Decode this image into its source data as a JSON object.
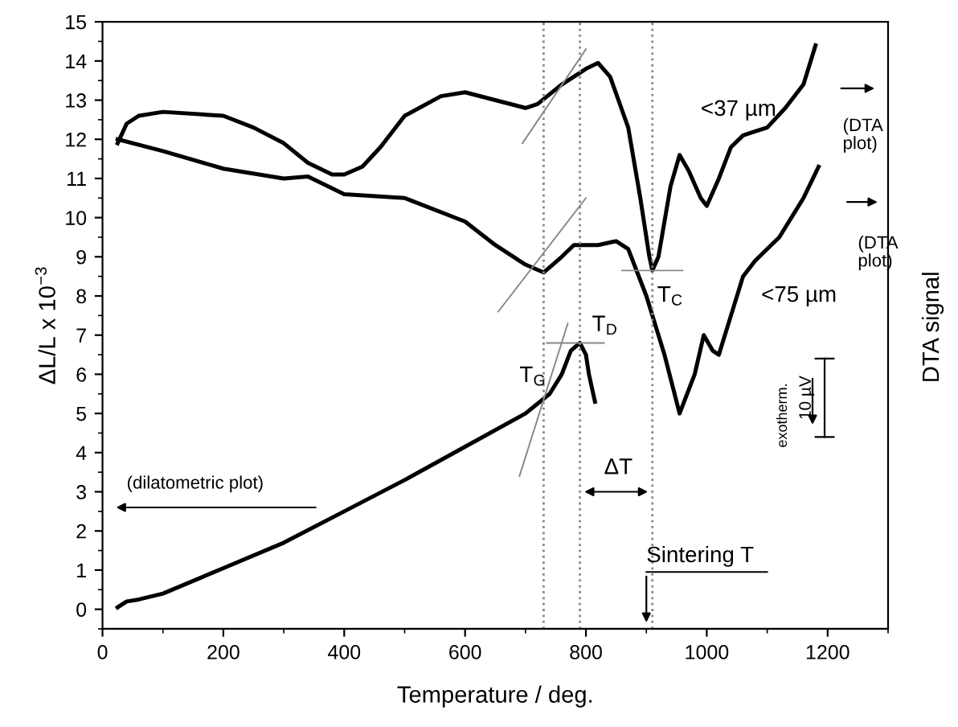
{
  "chart_data": {
    "type": "line",
    "xlabel": "Temperature / deg.",
    "ylabel": "ΔL/L x 10$^{−3}$",
    "y2label": "DTA signal",
    "xlim": [
      0,
      1300
    ],
    "ylim": [
      -0.5,
      15
    ],
    "xticks": [
      0,
      200,
      400,
      600,
      800,
      1000,
      1200
    ],
    "yticks": [
      0,
      1,
      2,
      3,
      4,
      5,
      6,
      7,
      8,
      9,
      10,
      11,
      12,
      13,
      14,
      15
    ],
    "grid": false,
    "marker": "none",
    "line_style": "solid",
    "series": [
      {
        "color": "#000000",
        "x": [
          25,
          40,
          60,
          100,
          200,
          300,
          400,
          500,
          600,
          700,
          740,
          760,
          775,
          790,
          800,
          805,
          815
        ],
        "values": [
          0.05,
          0.2,
          0.25,
          0.4,
          1.05,
          1.7,
          2.5,
          3.3,
          4.15,
          5.0,
          5.5,
          6.0,
          6.6,
          6.8,
          6.5,
          6.0,
          5.3
        ]
      },
      {
        "color": "#000000",
        "x": [
          25,
          40,
          60,
          100,
          200,
          250,
          300,
          340,
          380,
          400,
          430,
          460,
          500,
          560,
          600,
          650,
          700,
          720,
          760,
          800,
          820,
          840,
          870,
          890,
          905,
          910,
          920,
          940,
          955,
          970,
          990,
          1000,
          1020,
          1040,
          1060,
          1080,
          1100,
          1130,
          1160,
          1180
        ],
        "values": [
          11.9,
          12.4,
          12.6,
          12.7,
          12.6,
          12.3,
          11.9,
          11.4,
          11.1,
          11.1,
          11.3,
          11.8,
          12.6,
          13.1,
          13.2,
          13.0,
          12.8,
          12.9,
          13.4,
          13.8,
          13.95,
          13.6,
          12.3,
          10.5,
          9.0,
          8.65,
          9.0,
          10.8,
          11.6,
          11.2,
          10.5,
          10.3,
          11.0,
          11.8,
          12.1,
          12.2,
          12.3,
          12.8,
          13.4,
          14.4
        ]
      },
      {
        "color": "#000000",
        "x": [
          25,
          100,
          200,
          300,
          340,
          400,
          500,
          600,
          650,
          700,
          730,
          760,
          780,
          820,
          850,
          870,
          900,
          930,
          955,
          980,
          995,
          1010,
          1020,
          1040,
          1060,
          1080,
          1120,
          1160,
          1185
        ],
        "values": [
          12.0,
          11.7,
          11.25,
          11.0,
          11.05,
          10.6,
          10.5,
          9.9,
          9.3,
          8.8,
          8.6,
          9.0,
          9.3,
          9.3,
          9.4,
          9.2,
          8.0,
          6.5,
          5.0,
          6.0,
          7.0,
          6.6,
          6.5,
          7.5,
          8.5,
          8.9,
          9.5,
          10.5,
          11.3
        ]
      },
      {
        "color": "#888888",
        "x": [
          695,
          800
        ],
        "values": [
          11.9,
          14.3
        ]
      },
      {
        "color": "#888888",
        "x": [
          655,
          800
        ],
        "values": [
          7.6,
          10.5
        ]
      },
      {
        "color": "#888888",
        "x": [
          690,
          770
        ],
        "values": [
          3.4,
          7.3
        ]
      },
      {
        "color": "#888888",
        "x": [
          735,
          830
        ],
        "values": [
          6.8,
          6.8
        ]
      },
      {
        "color": "#888888",
        "x": [
          860,
          960
        ],
        "values": [
          8.65,
          8.65
        ]
      }
    ],
    "ref_lines": [
      {
        "axis": "x",
        "value": 730,
        "color": "#888888",
        "line_style": "dotted"
      },
      {
        "axis": "x",
        "value": 790,
        "color": "#888888",
        "line_style": "dotted"
      },
      {
        "axis": "x",
        "value": 910,
        "color": "#888888",
        "line_style": "dotted"
      }
    ],
    "annotations": [
      "<37 µm",
      "<75 µm",
      "(DTA\nplot)",
      "(DTA\nplot)",
      "(dilatometric plot)",
      "T$_{G}$",
      "T$_{D}$",
      "T$_{C}$",
      "ΔT",
      "Sintering T",
      "exotherm.",
      "10 µV"
    ]
  }
}
